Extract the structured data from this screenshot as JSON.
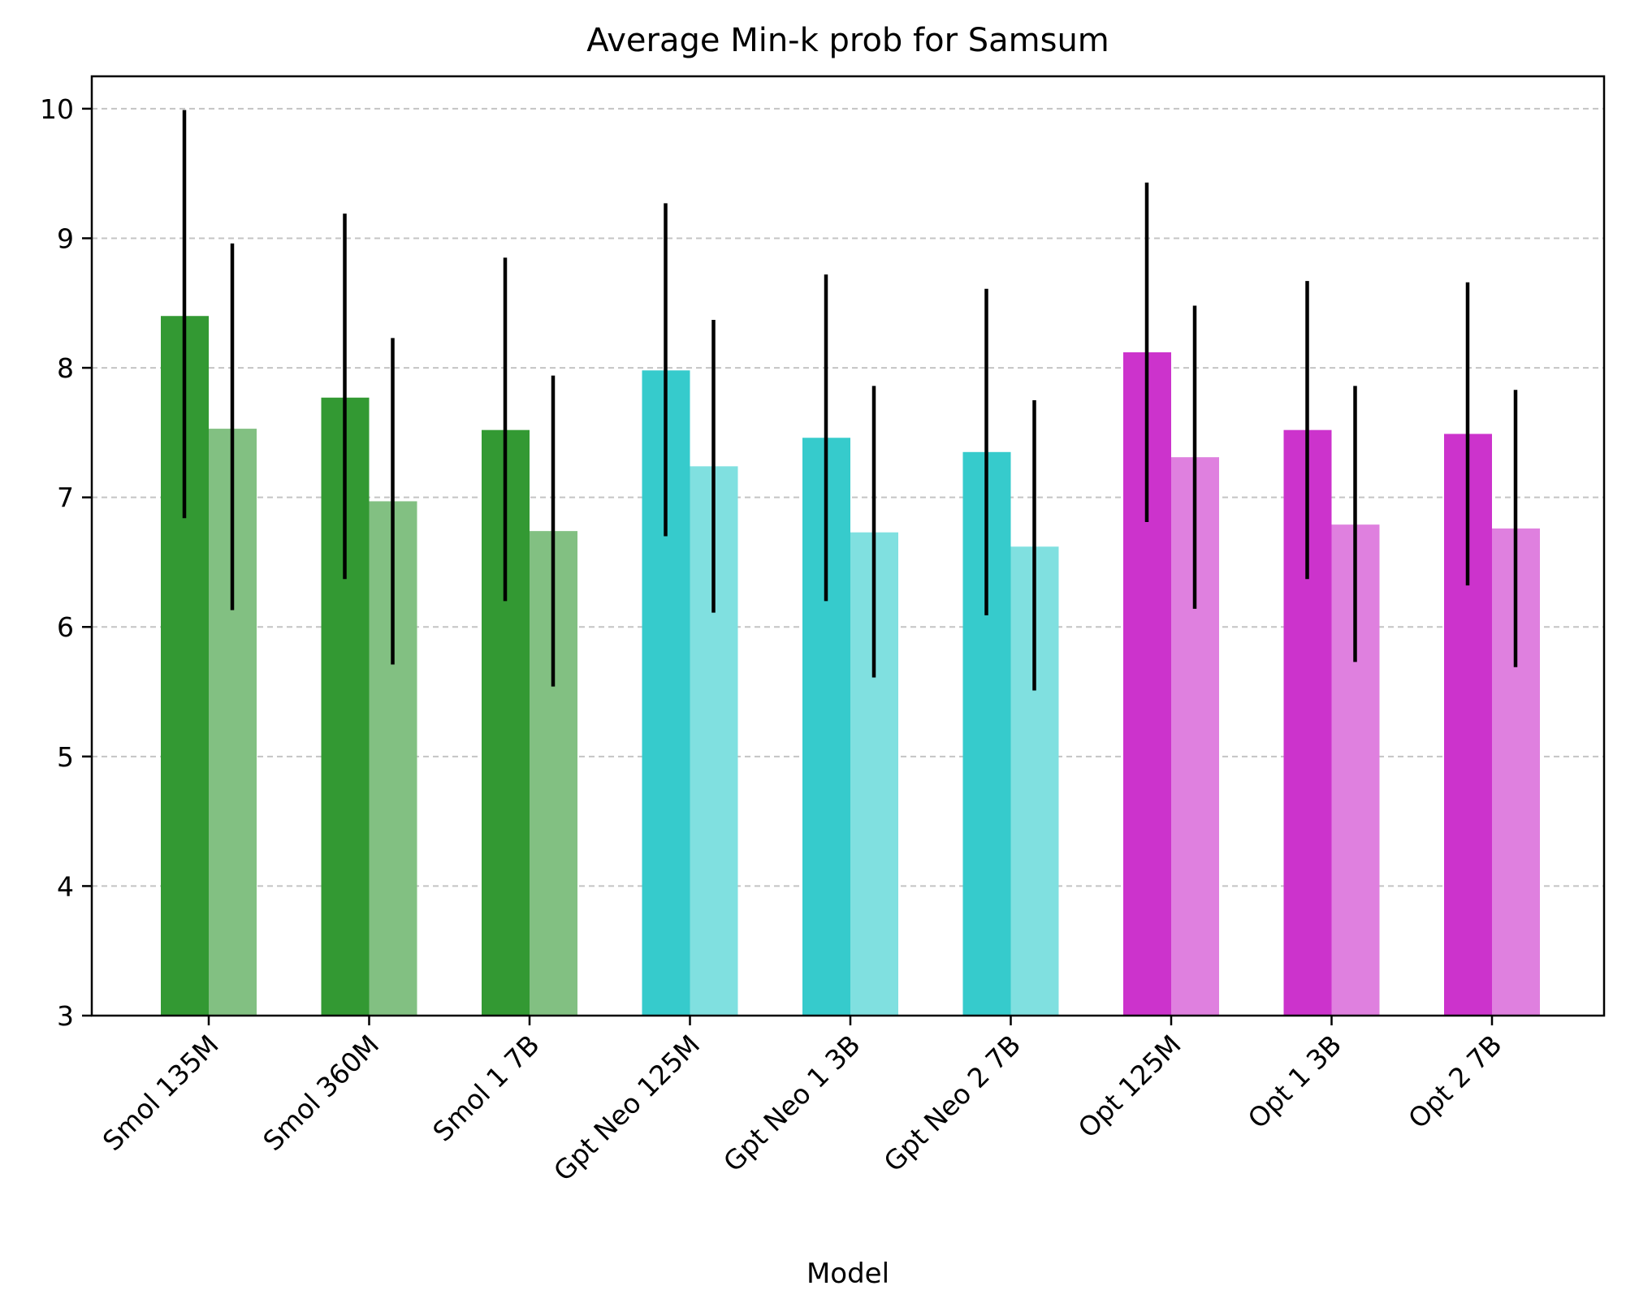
{
  "chart_data": {
    "type": "bar",
    "title": "Average Min-k prob for Samsum",
    "xlabel": "Model",
    "ylabel": "",
    "ylim": [
      3,
      10.25
    ],
    "yticks": [
      "3",
      "4",
      "5",
      "6",
      "7",
      "8",
      "9",
      "10"
    ],
    "grid": "y-dashed",
    "legend": "none",
    "categories": [
      "Smol 135M",
      "Smol 360M",
      "Smol 1 7B",
      "Gpt Neo 125M",
      "Gpt Neo 1 3B",
      "Gpt Neo 2 7B",
      "Opt 125M",
      "Opt 1 3B",
      "Opt 2 7B"
    ],
    "series": [
      {
        "values": [
          8.4,
          7.77,
          7.52,
          7.98,
          7.46,
          7.35,
          8.12,
          7.52,
          7.49
        ],
        "err_low": [
          6.84,
          6.37,
          6.2,
          6.7,
          6.2,
          6.09,
          6.81,
          6.37,
          6.32
        ],
        "err_high": [
          9.99,
          9.19,
          8.85,
          9.27,
          8.72,
          8.61,
          9.43,
          8.67,
          8.66
        ]
      },
      {
        "values": [
          7.53,
          6.97,
          6.74,
          7.24,
          6.73,
          6.62,
          7.31,
          6.79,
          6.76
        ],
        "err_low": [
          6.13,
          5.71,
          5.54,
          6.11,
          5.61,
          5.51,
          6.14,
          5.73,
          5.69
        ],
        "err_high": [
          8.96,
          8.23,
          7.94,
          8.37,
          7.86,
          7.75,
          8.48,
          7.86,
          7.83
        ]
      }
    ],
    "group_colors": [
      "#339933",
      "#339933",
      "#339933",
      "#36cbcc",
      "#36cbcc",
      "#36cbcc",
      "#cc33cc",
      "#cc33cc",
      "#cc33cc"
    ],
    "second_bar_colors": [
      "#82c082",
      "#82c082",
      "#82c082",
      "#80e0e0",
      "#80e0e0",
      "#80e0e0",
      "#df80df",
      "#df80df",
      "#df80df"
    ]
  }
}
